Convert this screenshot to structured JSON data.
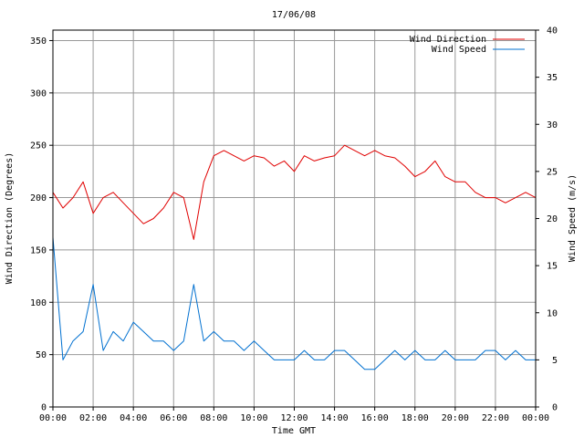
{
  "chart_data": {
    "type": "line",
    "title": "17/06/08",
    "xlabel": "Time GMT",
    "ylabel": "Wind Direction (Degrees)",
    "y2label": "Wind Speed (m/s)",
    "xlim": [
      0,
      24
    ],
    "ylim": [
      0,
      360
    ],
    "y2lim": [
      0,
      40
    ],
    "grid": true,
    "legend_position": "top-right",
    "x_ticks": [
      {
        "v": 0,
        "label": "00:00"
      },
      {
        "v": 2,
        "label": "02:00"
      },
      {
        "v": 4,
        "label": "04:00"
      },
      {
        "v": 6,
        "label": "06:00"
      },
      {
        "v": 8,
        "label": "08:00"
      },
      {
        "v": 10,
        "label": "10:00"
      },
      {
        "v": 12,
        "label": "12:00"
      },
      {
        "v": 14,
        "label": "14:00"
      },
      {
        "v": 16,
        "label": "16:00"
      },
      {
        "v": 18,
        "label": "18:00"
      },
      {
        "v": 20,
        "label": "20:00"
      },
      {
        "v": 22,
        "label": "22:00"
      },
      {
        "v": 24,
        "label": "00:00"
      }
    ],
    "y_ticks": [
      "0",
      "50",
      "100",
      "150",
      "200",
      "250",
      "300",
      "350"
    ],
    "y2_ticks": [
      "0",
      "5",
      "10",
      "15",
      "20",
      "25",
      "30",
      "35",
      "40"
    ],
    "x": [
      0,
      0.5,
      1,
      1.5,
      2,
      2.5,
      3,
      3.5,
      4,
      4.5,
      5,
      5.5,
      6,
      6.5,
      7,
      7.5,
      8,
      8.5,
      9,
      9.5,
      10,
      10.5,
      11,
      11.5,
      12,
      12.5,
      13,
      13.5,
      14,
      14.5,
      15,
      15.5,
      16,
      16.5,
      17,
      17.5,
      18,
      18.5,
      19,
      19.5,
      20,
      20.5,
      21,
      21.5,
      22,
      22.5,
      23,
      23.5,
      24
    ],
    "series": [
      {
        "name": "Wind Direction",
        "color": "#e00000",
        "axis": "left",
        "values": [
          205,
          190,
          200,
          215,
          185,
          200,
          205,
          195,
          185,
          175,
          180,
          190,
          205,
          200,
          160,
          215,
          240,
          245,
          240,
          235,
          240,
          238,
          230,
          235,
          225,
          240,
          235,
          238,
          240,
          250,
          245,
          240,
          245,
          240,
          238,
          230,
          220,
          225,
          235,
          220,
          215,
          215,
          205,
          200,
          200,
          195,
          200,
          205,
          200
        ]
      },
      {
        "name": "Wind Speed",
        "color": "#0070d0",
        "axis": "right",
        "values": [
          18,
          5,
          7,
          8,
          13,
          6,
          8,
          7,
          9,
          8,
          7,
          7,
          6,
          7,
          13,
          7,
          8,
          7,
          7,
          6,
          7,
          6,
          5,
          5,
          5,
          6,
          5,
          5,
          6,
          6,
          5,
          4,
          4,
          5,
          6,
          5,
          6,
          5,
          5,
          6,
          5,
          5,
          5,
          6,
          6,
          5,
          6,
          5,
          5
        ]
      }
    ]
  }
}
